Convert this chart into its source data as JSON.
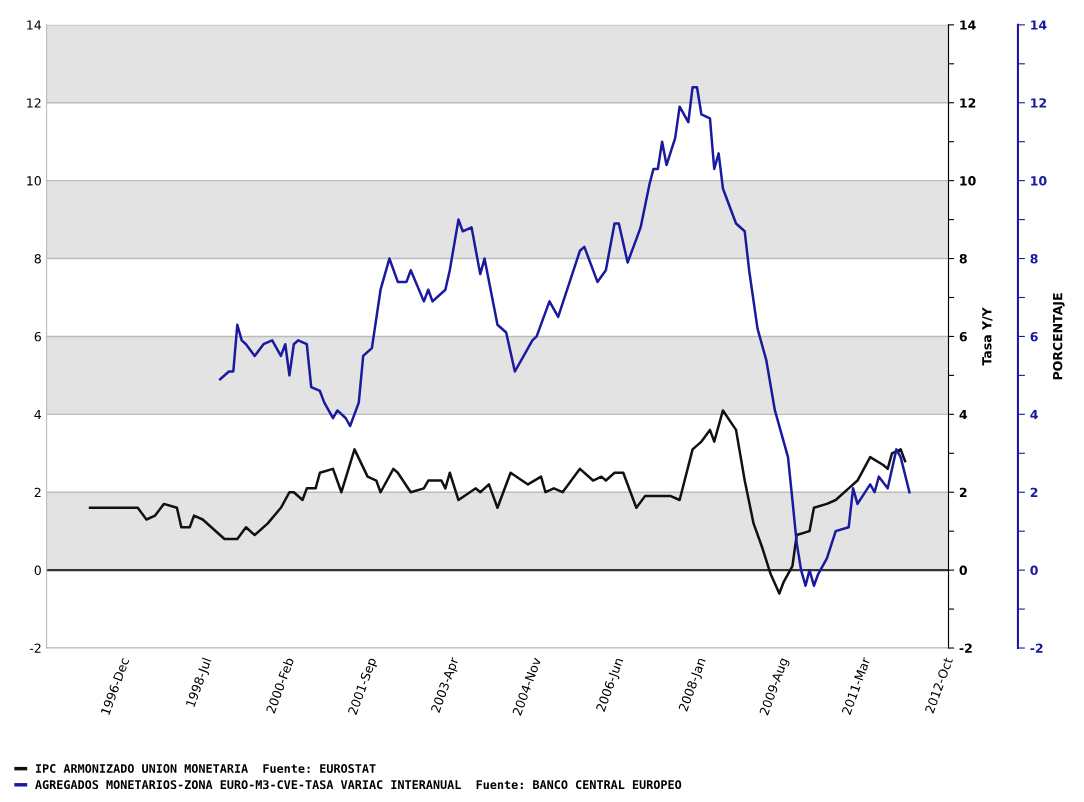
{
  "chart_data": {
    "type": "line",
    "xlim": [
      "1995-07",
      "2012-11"
    ],
    "xticks": [
      {
        "value": "1996-12",
        "label": "1996-Dec"
      },
      {
        "value": "1998-07",
        "label": "1998-Jul"
      },
      {
        "value": "2000-02",
        "label": "2000-Feb"
      },
      {
        "value": "2001-09",
        "label": "2001-Sep"
      },
      {
        "value": "2003-04",
        "label": "2003-Apr"
      },
      {
        "value": "2004-11",
        "label": "2004-Nov"
      },
      {
        "value": "2006-06",
        "label": "2006-Jun"
      },
      {
        "value": "2008-01",
        "label": "2008-Jan"
      },
      {
        "value": "2009-08",
        "label": "2009-Aug"
      },
      {
        "value": "2011-03",
        "label": "2011-Mar"
      },
      {
        "value": "2012-10",
        "label": "2012-Oct"
      }
    ],
    "ylim": [
      -2,
      14
    ],
    "yticks": [
      -2,
      0,
      2,
      4,
      6,
      8,
      10,
      12,
      14
    ],
    "y2label": "Tasa Y/Y",
    "y2lim": [
      -2,
      14
    ],
    "y2ticks": [
      -2,
      {
        "value": -1,
        "label": null
      },
      0,
      {
        "value": 1,
        "label": null
      },
      2,
      {
        "value": 3,
        "label": null
      },
      4,
      {
        "value": 5,
        "label": null
      },
      6,
      {
        "value": 7,
        "label": null
      },
      8,
      {
        "value": 9,
        "label": null
      },
      10,
      {
        "value": 11,
        "label": null
      },
      12,
      {
        "value": 13,
        "label": null
      },
      14
    ],
    "y3label": "PORCENTAJE",
    "y3lim": [
      -2,
      14
    ],
    "y3ticks": [
      -2,
      {
        "value": -1,
        "label": null
      },
      0,
      {
        "value": 1,
        "label": null
      },
      2,
      {
        "value": 3,
        "label": null
      },
      4,
      {
        "value": 5,
        "label": null
      },
      6,
      {
        "value": 7,
        "label": null
      },
      8,
      {
        "value": 9,
        "label": null
      },
      10,
      {
        "value": 11,
        "label": null
      },
      12,
      {
        "value": 13,
        "label": null
      },
      14
    ],
    "grid": "y",
    "legend": "bottom",
    "marker": "none",
    "line_style": "solid",
    "bands": [
      {
        "axis": "y",
        "from": 0,
        "to": 2,
        "color": "#e3e3e3"
      },
      {
        "axis": "y",
        "from": 4,
        "to": 6,
        "color": "#e3e3e3"
      },
      {
        "axis": "y",
        "from": 8,
        "to": 10,
        "color": "#e3e3e3"
      },
      {
        "axis": "y",
        "from": 12,
        "to": 14,
        "color": "#e3e3e3"
      }
    ],
    "ref_lines": [
      {
        "axis": "y",
        "value": 0,
        "color": "#333333",
        "line_style": "solid"
      }
    ],
    "series": [
      {
        "name": "IPC ARMONIZADO UNION MONETARIA  Fuente: EUROSTAT",
        "color": "#111111",
        "axis": "y2",
        "x": [
          "1996-05",
          "1997-04",
          "1997-06",
          "1997-08",
          "1997-10",
          "1998-01",
          "1998-02",
          "1998-04",
          "1998-05",
          "1998-07",
          "1998-12",
          "1999-03",
          "1999-05",
          "1999-07",
          "1999-10",
          "2000-01",
          "2000-03",
          "2000-04",
          "2000-06",
          "2000-07",
          "2000-09",
          "2000-10",
          "2001-01",
          "2001-03",
          "2001-06",
          "2001-09",
          "2001-11",
          "2001-12",
          "2002-03",
          "2002-04",
          "2002-07",
          "2002-10",
          "2002-11",
          "2003-02",
          "2003-03",
          "2003-04",
          "2003-06",
          "2003-10",
          "2003-11",
          "2004-01",
          "2004-03",
          "2004-06",
          "2004-10",
          "2005-01",
          "2005-02",
          "2005-04",
          "2005-06",
          "2005-10",
          "2006-01",
          "2006-03",
          "2006-04",
          "2006-06",
          "2006-08",
          "2006-11",
          "2007-01",
          "2007-04",
          "2007-07",
          "2007-09",
          "2007-12",
          "2008-02",
          "2008-04",
          "2008-05",
          "2008-07",
          "2008-10",
          "2008-12",
          "2009-02",
          "2009-04",
          "2009-06",
          "2009-08",
          "2009-09",
          "2009-11",
          "2009-12",
          "2010-03",
          "2010-04",
          "2010-07",
          "2010-09",
          "2010-12",
          "2011-02",
          "2011-05",
          "2011-08",
          "2011-09",
          "2011-10",
          "2011-12",
          "2012-01"
        ],
        "values": [
          1.6,
          1.6,
          1.3,
          1.4,
          1.7,
          1.6,
          1.1,
          1.1,
          1.4,
          1.3,
          0.8,
          0.8,
          1.1,
          0.9,
          1.2,
          1.6,
          2.0,
          2.0,
          1.8,
          2.1,
          2.1,
          2.5,
          2.6,
          2.0,
          3.1,
          2.4,
          2.3,
          2.0,
          2.6,
          2.5,
          2.0,
          2.1,
          2.3,
          2.3,
          2.1,
          2.5,
          1.8,
          2.1,
          2.0,
          2.2,
          1.6,
          2.5,
          2.2,
          2.4,
          2.0,
          2.1,
          2.0,
          2.6,
          2.3,
          2.4,
          2.3,
          2.5,
          2.5,
          1.6,
          1.9,
          1.9,
          1.9,
          1.8,
          3.1,
          3.3,
          3.6,
          3.3,
          4.1,
          3.6,
          2.3,
          1.2,
          0.6,
          -0.1,
          -0.6,
          -0.3,
          0.1,
          0.9,
          1.0,
          1.6,
          1.7,
          1.8,
          2.1,
          2.3,
          2.9,
          2.7,
          2.6,
          3.0,
          3.1,
          2.8
        ]
      },
      {
        "name": "AGREGADOS MONETARIOS-ZONA EURO-M3-CVE-TASA VARIAC INTERANUAL  Fuente: BANCO CENTRAL EUROPEO",
        "color": "#1a1aa0",
        "axis": "y3",
        "x": [
          "1998-11",
          "1999-01",
          "1999-02",
          "1999-03",
          "1999-04",
          "1999-05",
          "1999-07",
          "1999-09",
          "1999-11",
          "2000-01",
          "2000-02",
          "2000-03",
          "2000-04",
          "2000-05",
          "2000-07",
          "2000-08",
          "2000-10",
          "2000-11",
          "2001-01",
          "2001-02",
          "2001-04",
          "2001-05",
          "2001-07",
          "2001-08",
          "2001-10",
          "2001-12",
          "2002-02",
          "2002-04",
          "2002-06",
          "2002-07",
          "2002-10",
          "2002-11",
          "2002-12",
          "2003-03",
          "2003-04",
          "2003-06",
          "2003-07",
          "2003-09",
          "2003-11",
          "2003-12",
          "2004-03",
          "2004-05",
          "2004-07",
          "2004-09",
          "2004-11",
          "2004-12",
          "2005-03",
          "2005-05",
          "2005-10",
          "2005-11",
          "2006-02",
          "2006-04",
          "2006-06",
          "2006-07",
          "2006-09",
          "2006-11",
          "2006-12",
          "2007-02",
          "2007-03",
          "2007-04",
          "2007-05",
          "2007-06",
          "2007-08",
          "2007-09",
          "2007-11",
          "2007-12",
          "2008-01",
          "2008-02",
          "2008-04",
          "2008-05",
          "2008-06",
          "2008-07",
          "2008-10",
          "2008-12",
          "2009-01",
          "2009-03",
          "2009-05",
          "2009-07",
          "2009-10",
          "2009-11",
          "2009-12",
          "2010-01",
          "2010-02",
          "2010-03",
          "2010-04",
          "2010-05",
          "2010-07",
          "2010-09",
          "2010-12",
          "2011-01",
          "2011-02",
          "2011-05",
          "2011-06",
          "2011-07",
          "2011-09",
          "2011-11",
          "2011-12",
          "2012-02"
        ],
        "values": [
          4.9,
          5.1,
          5.1,
          6.3,
          5.9,
          5.8,
          5.5,
          5.8,
          5.9,
          5.5,
          5.8,
          5.0,
          5.8,
          5.9,
          5.8,
          4.7,
          4.6,
          4.3,
          3.9,
          4.1,
          3.9,
          3.7,
          4.3,
          5.5,
          5.7,
          7.2,
          8.0,
          7.4,
          7.4,
          7.7,
          6.9,
          7.2,
          6.9,
          7.2,
          7.7,
          9.0,
          8.7,
          8.8,
          7.6,
          8.0,
          6.3,
          6.1,
          5.1,
          5.5,
          5.9,
          6.0,
          6.9,
          6.5,
          8.2,
          8.3,
          7.4,
          7.7,
          8.9,
          8.9,
          7.9,
          8.5,
          8.8,
          9.9,
          10.3,
          10.3,
          11.0,
          10.4,
          11.1,
          11.9,
          11.5,
          12.4,
          12.4,
          11.7,
          11.6,
          10.3,
          10.7,
          9.8,
          8.9,
          8.7,
          7.7,
          6.2,
          5.4,
          4.1,
          2.9,
          1.8,
          0.7,
          0.0,
          -0.4,
          0.0,
          -0.4,
          -0.1,
          0.3,
          1.0,
          1.1,
          2.1,
          1.7,
          2.2,
          2.0,
          2.4,
          2.1,
          3.1,
          2.9,
          2.0
        ]
      }
    ]
  }
}
